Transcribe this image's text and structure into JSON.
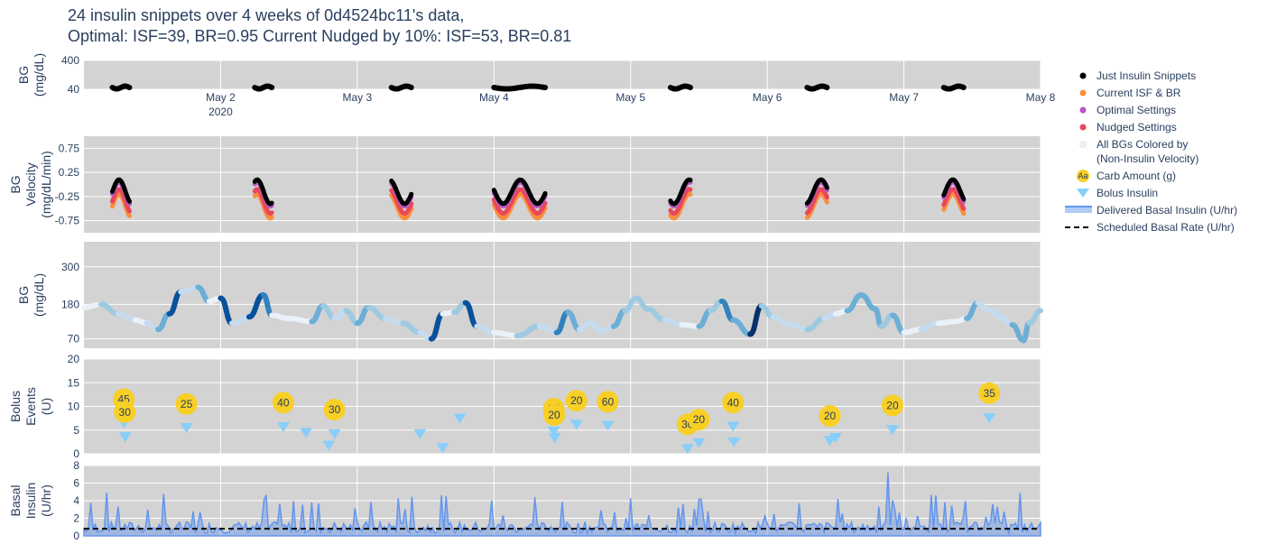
{
  "title_line1": "24 insulin snippets over 4 weeks of 0d4524bc11's data,",
  "title_line2": "Optimal: ISF=39, BR=0.95 Current Nudged by 10%: ISF=53, BR=0.81",
  "colors": {
    "plot_bg": "#d3d3d3",
    "just_insulin": "#000000",
    "current": "#fb8e3d",
    "optimal": "#b558c0",
    "nudged": "#e8485a",
    "carb": "#f8cf24",
    "bolus": "#87cefa",
    "basal": "#6495ed",
    "scheduled": "#000000"
  },
  "legend": [
    {
      "key": "just",
      "label": "Just Insulin Snippets",
      "symbol": "dot",
      "color": "#000000"
    },
    {
      "key": "current",
      "label": "Current ISF & BR",
      "symbol": "dot",
      "color": "#fb8e3d"
    },
    {
      "key": "optimal",
      "label": "Optimal Settings",
      "symbol": "dot",
      "color": "#b558c0"
    },
    {
      "key": "nudged",
      "label": "Nudged Settings",
      "symbol": "dot",
      "color": "#e8485a"
    },
    {
      "key": "allbg",
      "label": "All BGs Colored by",
      "label2": "(Non-Insulin Velocity)",
      "symbol": "dot",
      "color": "#eef2f6"
    },
    {
      "key": "carb",
      "label": "Carb Amount (g)",
      "symbol": "carb",
      "color": "#f8cf24",
      "glyph": "Aa"
    },
    {
      "key": "bolus",
      "label": "Bolus Insulin",
      "symbol": "triangle",
      "color": "#87cefa"
    },
    {
      "key": "basal",
      "label": "Delivered Basal Insulin (U/hr)",
      "symbol": "band",
      "color": "#6495ed"
    },
    {
      "key": "sched",
      "label": "Scheduled Basal Rate (U/hr)",
      "symbol": "dash",
      "color": "#000000"
    }
  ],
  "chart_data": {
    "type": "line",
    "x_range": [
      "2020-05-01T00:00",
      "2020-05-08T00:00"
    ],
    "x_ticks": [
      {
        "x": "2020-05-02",
        "label": "May 2",
        "sub": "2020"
      },
      {
        "x": "2020-05-03",
        "label": "May 3"
      },
      {
        "x": "2020-05-04",
        "label": "May 4"
      },
      {
        "x": "2020-05-05",
        "label": "May 5"
      },
      {
        "x": "2020-05-06",
        "label": "May 6"
      },
      {
        "x": "2020-05-07",
        "label": "May 7"
      },
      {
        "x": "2020-05-08",
        "label": "May 8"
      }
    ],
    "panels": {
      "snippets": {
        "ylabel": "BG (mg/dL)",
        "yticks": [
          40,
          400
        ],
        "ylim": [
          40,
          400
        ],
        "snippet_windows": [
          [
            "2020-05-01T05:00",
            "2020-05-01T08:00"
          ],
          [
            "2020-05-02T06:00",
            "2020-05-02T09:00"
          ],
          [
            "2020-05-03T06:00",
            "2020-05-03T09:30"
          ],
          [
            "2020-05-04T00:00",
            "2020-05-04T09:00"
          ],
          [
            "2020-05-05T07:00",
            "2020-05-05T10:30"
          ],
          [
            "2020-05-06T07:00",
            "2020-05-06T10:30"
          ],
          [
            "2020-05-07T07:00",
            "2020-05-07T10:30"
          ]
        ],
        "snippet_bg": 62
      },
      "velocity": {
        "ylabel": "BG Velocity (mg/dL/min)",
        "yticks": [
          -0.75,
          -0.25,
          0.25,
          0.75
        ],
        "ylim": [
          -1.0,
          1.0
        ]
      },
      "bg": {
        "ylabel": "BG (mg/dL)",
        "yticks": [
          70,
          180,
          300
        ],
        "ylim": [
          40,
          380
        ],
        "series": [
          {
            "x": "2020-05-01T00:00",
            "y": 170
          },
          {
            "x": "2020-05-01T03:00",
            "y": 180
          },
          {
            "x": "2020-05-01T06:00",
            "y": 150
          },
          {
            "x": "2020-05-01T09:00",
            "y": 130
          },
          {
            "x": "2020-05-01T11:00",
            "y": 120
          },
          {
            "x": "2020-05-01T13:00",
            "y": 100
          },
          {
            "x": "2020-05-01T15:00",
            "y": 150
          },
          {
            "x": "2020-05-01T17:00",
            "y": 220
          },
          {
            "x": "2020-05-01T20:00",
            "y": 235
          },
          {
            "x": "2020-05-01T22:00",
            "y": 190
          },
          {
            "x": "2020-05-02T00:00",
            "y": 200
          },
          {
            "x": "2020-05-02T02:00",
            "y": 120
          },
          {
            "x": "2020-05-02T05:00",
            "y": 140
          },
          {
            "x": "2020-05-02T07:30",
            "y": 210
          },
          {
            "x": "2020-05-02T09:00",
            "y": 145
          },
          {
            "x": "2020-05-02T12:00",
            "y": 135
          },
          {
            "x": "2020-05-02T16:00",
            "y": 125
          },
          {
            "x": "2020-05-02T18:00",
            "y": 175
          },
          {
            "x": "2020-05-02T20:00",
            "y": 135
          },
          {
            "x": "2020-05-02T22:00",
            "y": 160
          },
          {
            "x": "2020-05-03T00:00",
            "y": 120
          },
          {
            "x": "2020-05-03T02:00",
            "y": 170
          },
          {
            "x": "2020-05-03T05:00",
            "y": 135
          },
          {
            "x": "2020-05-03T08:00",
            "y": 120
          },
          {
            "x": "2020-05-03T11:00",
            "y": 90
          },
          {
            "x": "2020-05-03T13:00",
            "y": 70
          },
          {
            "x": "2020-05-03T15:00",
            "y": 150
          },
          {
            "x": "2020-05-03T17:00",
            "y": 155
          },
          {
            "x": "2020-05-03T19:00",
            "y": 185
          },
          {
            "x": "2020-05-03T21:00",
            "y": 110
          },
          {
            "x": "2020-05-04T00:00",
            "y": 90
          },
          {
            "x": "2020-05-04T04:00",
            "y": 80
          },
          {
            "x": "2020-05-04T08:00",
            "y": 110
          },
          {
            "x": "2020-05-04T11:00",
            "y": 90
          },
          {
            "x": "2020-05-04T13:00",
            "y": 155
          },
          {
            "x": "2020-05-04T15:00",
            "y": 100
          },
          {
            "x": "2020-05-04T17:00",
            "y": 120
          },
          {
            "x": "2020-05-04T19:00",
            "y": 95
          },
          {
            "x": "2020-05-04T21:00",
            "y": 110
          },
          {
            "x": "2020-05-04T23:00",
            "y": 160
          },
          {
            "x": "2020-05-05T01:00",
            "y": 200
          },
          {
            "x": "2020-05-05T03:00",
            "y": 165
          },
          {
            "x": "2020-05-05T06:00",
            "y": 130
          },
          {
            "x": "2020-05-05T09:00",
            "y": 115
          },
          {
            "x": "2020-05-05T12:00",
            "y": 110
          },
          {
            "x": "2020-05-05T14:00",
            "y": 160
          },
          {
            "x": "2020-05-05T16:00",
            "y": 190
          },
          {
            "x": "2020-05-05T18:00",
            "y": 130
          },
          {
            "x": "2020-05-05T21:00",
            "y": 85
          },
          {
            "x": "2020-05-05T23:00",
            "y": 175
          },
          {
            "x": "2020-05-06T01:00",
            "y": 140
          },
          {
            "x": "2020-05-06T04:00",
            "y": 115
          },
          {
            "x": "2020-05-06T07:00",
            "y": 100
          },
          {
            "x": "2020-05-06T10:00",
            "y": 135
          },
          {
            "x": "2020-05-06T12:00",
            "y": 150
          },
          {
            "x": "2020-05-06T14:00",
            "y": 160
          },
          {
            "x": "2020-05-06T16:30",
            "y": 210
          },
          {
            "x": "2020-05-06T19:00",
            "y": 165
          },
          {
            "x": "2020-05-06T20:00",
            "y": 110
          },
          {
            "x": "2020-05-06T22:00",
            "y": 145
          },
          {
            "x": "2020-05-07T00:00",
            "y": 90
          },
          {
            "x": "2020-05-07T03:00",
            "y": 100
          },
          {
            "x": "2020-05-07T06:00",
            "y": 120
          },
          {
            "x": "2020-05-07T09:00",
            "y": 125
          },
          {
            "x": "2020-05-07T11:00",
            "y": 135
          },
          {
            "x": "2020-05-07T13:00",
            "y": 185
          },
          {
            "x": "2020-05-07T15:00",
            "y": 160
          },
          {
            "x": "2020-05-07T17:00",
            "y": 140
          },
          {
            "x": "2020-05-07T19:00",
            "y": 115
          },
          {
            "x": "2020-05-07T21:00",
            "y": 65
          },
          {
            "x": "2020-05-07T22:00",
            "y": 120
          },
          {
            "x": "2020-05-08T00:00",
            "y": 160
          }
        ]
      },
      "bolus": {
        "ylabel": "Bolus Events (U)",
        "yticks": [
          0,
          5,
          10,
          15,
          20
        ],
        "ylim": [
          0,
          20
        ],
        "carbs": [
          {
            "x": "2020-05-01T07:00",
            "y": 11.5,
            "g": 45
          },
          {
            "x": "2020-05-01T07:10",
            "y": 8.8,
            "g": 30
          },
          {
            "x": "2020-05-01T18:00",
            "y": 10.5,
            "g": 25
          },
          {
            "x": "2020-05-02T11:00",
            "y": 10.8,
            "g": 40
          },
          {
            "x": "2020-05-02T20:00",
            "y": 9.3,
            "g": 30
          },
          {
            "x": "2020-05-04T10:30",
            "y": 9.5,
            "g": 35
          },
          {
            "x": "2020-05-04T10:35",
            "y": 8.2,
            "g": 20
          },
          {
            "x": "2020-05-04T14:30",
            "y": 11.2,
            "g": 20
          },
          {
            "x": "2020-05-04T20:00",
            "y": 11.0,
            "g": 60
          },
          {
            "x": "2020-05-05T10:00",
            "y": 6.2,
            "g": 30
          },
          {
            "x": "2020-05-05T12:00",
            "y": 7.2,
            "g": 20
          },
          {
            "x": "2020-05-05T18:00",
            "y": 10.8,
            "g": 40
          },
          {
            "x": "2020-05-06T11:00",
            "y": 8.0,
            "g": 20
          },
          {
            "x": "2020-05-06T22:00",
            "y": 10.2,
            "g": 20
          },
          {
            "x": "2020-05-07T15:00",
            "y": 12.8,
            "g": 35
          }
        ],
        "boluses": [
          {
            "x": "2020-05-01T07:00",
            "y": 6.5
          },
          {
            "x": "2020-05-01T07:15",
            "y": 3.6
          },
          {
            "x": "2020-05-01T18:00",
            "y": 5.5
          },
          {
            "x": "2020-05-02T11:00",
            "y": 5.7
          },
          {
            "x": "2020-05-02T15:00",
            "y": 4.5
          },
          {
            "x": "2020-05-02T19:00",
            "y": 1.8
          },
          {
            "x": "2020-05-02T20:00",
            "y": 4.2
          },
          {
            "x": "2020-05-03T11:00",
            "y": 4.2
          },
          {
            "x": "2020-05-03T15:00",
            "y": 1.3
          },
          {
            "x": "2020-05-03T18:00",
            "y": 7.5
          },
          {
            "x": "2020-05-04T10:30",
            "y": 4.8
          },
          {
            "x": "2020-05-04T10:40",
            "y": 3.4
          },
          {
            "x": "2020-05-04T14:30",
            "y": 6.2
          },
          {
            "x": "2020-05-04T19:30",
            "y": 9.8
          },
          {
            "x": "2020-05-04T20:00",
            "y": 6.0
          },
          {
            "x": "2020-05-05T10:00",
            "y": 1.1
          },
          {
            "x": "2020-05-05T12:00",
            "y": 2.3
          },
          {
            "x": "2020-05-05T18:00",
            "y": 5.8
          },
          {
            "x": "2020-05-05T18:10",
            "y": 2.5
          },
          {
            "x": "2020-05-06T11:00",
            "y": 2.8
          },
          {
            "x": "2020-05-06T12:00",
            "y": 3.4
          },
          {
            "x": "2020-05-06T22:00",
            "y": 5.1
          },
          {
            "x": "2020-05-07T15:00",
            "y": 7.6
          }
        ]
      },
      "basal": {
        "ylabel": "Basal Insulin (U/hr)",
        "yticks": [
          0,
          2,
          4,
          6,
          8
        ],
        "ylim": [
          0,
          8
        ],
        "scheduled_rate": 0.81,
        "peak": 7.2
      }
    }
  }
}
